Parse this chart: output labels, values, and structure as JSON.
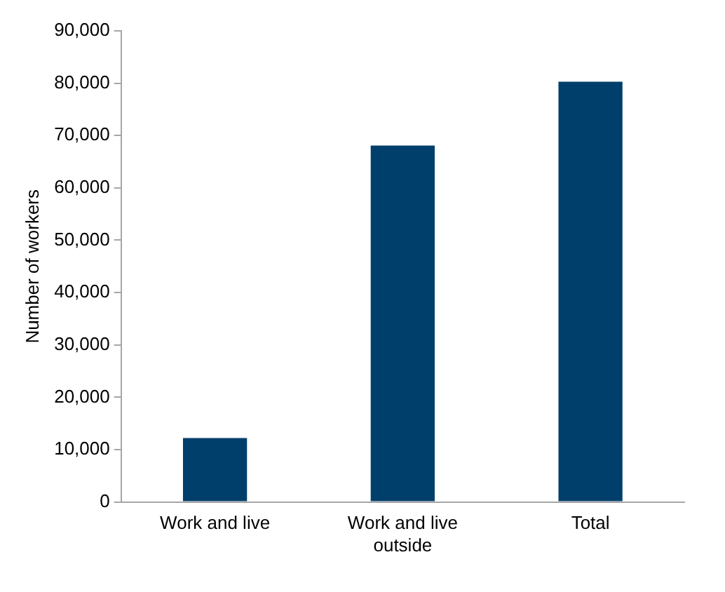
{
  "chart_data": {
    "type": "bar",
    "ylabel": "Number of workers",
    "categories": [
      "Work and live",
      "Work and live outside",
      "Total"
    ],
    "values": [
      12200,
      68100,
      80300
    ],
    "color": "#003f6b",
    "ylim": [
      0,
      90000
    ],
    "yticks": [
      {
        "value": 0,
        "label": "0"
      },
      {
        "value": 10000,
        "label": "10,000"
      },
      {
        "value": 20000,
        "label": "20,000"
      },
      {
        "value": 30000,
        "label": "30,000"
      },
      {
        "value": 40000,
        "label": "40,000"
      },
      {
        "value": 50000,
        "label": "50,000"
      },
      {
        "value": 60000,
        "label": "60,000"
      },
      {
        "value": 70000,
        "label": "70,000"
      },
      {
        "value": 80000,
        "label": "80,000"
      },
      {
        "value": 90000,
        "label": "90,000"
      }
    ],
    "grid": false,
    "legend": false
  }
}
